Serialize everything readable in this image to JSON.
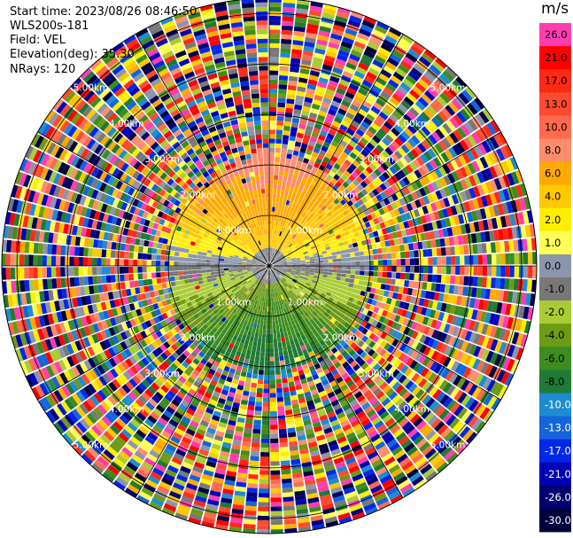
{
  "header": {
    "start_time": "Start time: 2023/08/26 08:46:50",
    "instrument": "WLS200s-181",
    "field": "Field: VEL",
    "elevation": "Elevation(deg): 35.30",
    "nrays": "NRays: 120"
  },
  "chart_data": {
    "type": "heatmap",
    "projection": "polar-ppi",
    "field": "VEL",
    "units": "m/s",
    "elevation_deg": 35.3,
    "n_rays": 120,
    "range_rings_km": [
      1,
      2,
      3,
      4,
      5
    ],
    "range_ring_labels": [
      "1.00km",
      "2.00km",
      "3.00km",
      "4.00km",
      "5.00km"
    ],
    "max_range_km": 5.3,
    "colorbar": {
      "title": "m/s",
      "tick_labels": [
        "26.0",
        "21.0",
        "17.0",
        "13.0",
        "10.0",
        "8.0",
        "6.0",
        "4.0",
        "2.0",
        "1.0",
        "0.0",
        "-1.0",
        "-2.0",
        "-4.0",
        "-6.0",
        "-8.0",
        "-10.0",
        "-13.0",
        "-17.0",
        "-21.0",
        "-26.0",
        "-30.0"
      ],
      "colors": [
        "#ff3db0",
        "#ff0000",
        "#ff2a14",
        "#ff4a32",
        "#ff6a4e",
        "#ff8c6e",
        "#ffaa00",
        "#ffc800",
        "#ffee00",
        "#ffff55",
        "#8c96aa",
        "#787878",
        "#aacc33",
        "#6e9a14",
        "#3c8c1e",
        "#1e7a34",
        "#1e8cd2",
        "#1464dc",
        "#0028e6",
        "#0000b4",
        "#000070",
        "#00003c"
      ]
    },
    "pattern": "Clean wind signal within ~2.2 km: positive velocities (yellow/orange/red) to the north, near zero (gray) along east-west axis, negative velocities (green to blue) to the south; noisy random multicolor returns beyond."
  }
}
